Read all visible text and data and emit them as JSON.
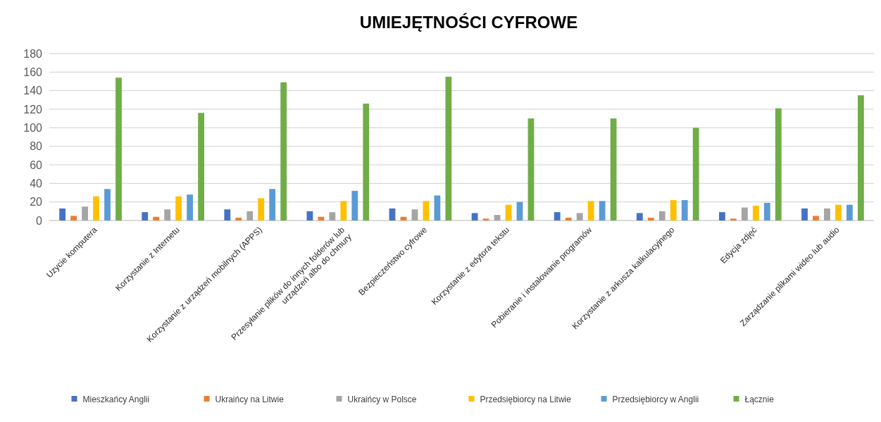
{
  "chart_data": {
    "type": "bar",
    "title": "UMIEJĘTNOŚCI CYFROWE",
    "categories": [
      "Uzycie komputera",
      "Korzystanie z Internetu",
      "Korzystanie z urządzeń mobilnych (APPS)",
      "Przesyłanie plików do innych folderów lub\nurządzeń albo do chmury",
      "Bezpieczeństwo cyfrowe",
      "Korzystanie z edytora tekstu",
      "Pobieranie i instalowanie programów",
      "Korzystanie z arkusza kalkulacyjnego",
      "Edycja zdjęć",
      "Zarządzanie plikami wideo lub audio"
    ],
    "series": [
      {
        "name": "Mieszkańcy Anglii",
        "color": "#4472c4",
        "values": [
          13,
          9,
          12,
          10,
          13,
          8,
          9,
          8,
          9,
          13
        ]
      },
      {
        "name": "Ukraińcy na Litwie",
        "color": "#ed7d31",
        "values": [
          5,
          4,
          3,
          4,
          4,
          2,
          3,
          3,
          2,
          5
        ]
      },
      {
        "name": "Ukraińcy w Polsce",
        "color": "#a5a5a5",
        "values": [
          15,
          12,
          10,
          9,
          12,
          6,
          8,
          10,
          14,
          13
        ]
      },
      {
        "name": "Przedsiębiorcy na Litwie",
        "color": "#ffc000",
        "values": [
          26,
          26,
          24,
          21,
          21,
          17,
          21,
          22,
          16,
          17
        ]
      },
      {
        "name": "Przedsiębiorcy w Anglii",
        "color": "#5b9bd5",
        "values": [
          34,
          28,
          34,
          32,
          27,
          20,
          21,
          22,
          19,
          17
        ]
      },
      {
        "name": "Łącznie",
        "color": "#70ad47",
        "values": [
          154,
          116,
          149,
          126,
          155,
          110,
          110,
          100,
          121,
          135
        ]
      }
    ],
    "ylim": [
      0,
      180
    ],
    "yticks": [
      0,
      20,
      40,
      60,
      80,
      100,
      120,
      140,
      160,
      180
    ],
    "grid": "y",
    "legend": "bottom"
  }
}
